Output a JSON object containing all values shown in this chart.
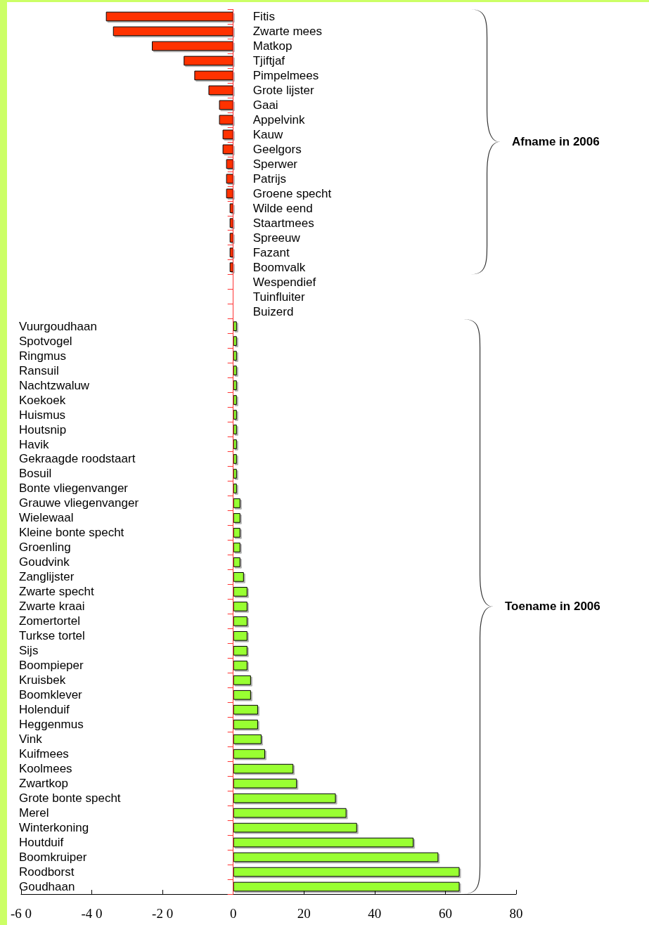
{
  "chart_data": {
    "type": "bar",
    "orientation": "horizontal",
    "categories": [
      "Fitis",
      "Zwarte mees",
      "Matkop",
      "Tjiftjaf",
      "Pimpelmees",
      "Grote lijster",
      "Gaai",
      "Appelvink",
      "Kauw",
      "Geelgors",
      "Sperwer",
      "Patrijs",
      "Groene specht",
      "Wilde eend",
      "Staartmees",
      "Spreeuw",
      "Fazant",
      "Boomvalk",
      "Wespendief",
      "Tuinfluiter",
      "Buizerd",
      "Vuurgoudhaan",
      "Spotvogel",
      "Ringmus",
      "Ransuil",
      "Nachtzwaluw",
      "Koekoek",
      "Huismus",
      "Houtsnip",
      "Havik",
      "Gekraagde roodstaart",
      "Bosuil",
      "Bonte vliegenvanger",
      "Grauwe vliegenvanger",
      "Wielewaal",
      "Kleine bonte specht",
      "Groenling",
      "Goudvink",
      "Zanglijster",
      "Zwarte specht",
      "Zwarte kraai",
      "Zomertortel",
      "Turkse tortel",
      "Sijs",
      "Boompieper",
      "Kruisbek",
      "Boomklever",
      "Holenduif",
      "Heggenmus",
      "Vink",
      "Kuifmees",
      "Koolmees",
      "Zwartkop",
      "Grote bonte specht",
      "Merel",
      "Winterkoning",
      "Houtduif",
      "Boomkruiper",
      "Roodborst",
      "Goudhaan"
    ],
    "values": [
      -36,
      -34,
      -23,
      -14,
      -11,
      -7,
      -4,
      -4,
      -3,
      -3,
      -2,
      -2,
      -2,
      -1,
      -1,
      -1,
      -1,
      -1,
      0,
      0,
      0,
      1,
      1,
      1,
      1,
      1,
      1,
      1,
      1,
      1,
      1,
      1,
      1,
      2,
      2,
      2,
      2,
      2,
      3,
      4,
      4,
      4,
      4,
      4,
      4,
      5,
      5,
      7,
      7,
      8,
      9,
      17,
      18,
      29,
      32,
      35,
      51,
      58,
      64,
      64
    ],
    "colors": [
      "#ff3300",
      "#ff3300",
      "#ff3300",
      "#ff3300",
      "#ff3300",
      "#ff3300",
      "#ff3300",
      "#ff3300",
      "#ff3300",
      "#ff3300",
      "#ff3300",
      "#ff3300",
      "#ff3300",
      "#ff3300",
      "#ff3300",
      "#ff3300",
      "#ff3300",
      "#ff3300",
      "#ff3300",
      "#ff3300",
      "#ff3300",
      "#99ff33",
      "#99ff33",
      "#99ff33",
      "#99ff33",
      "#99ff33",
      "#99ff33",
      "#99ff33",
      "#99ff33",
      "#99ff33",
      "#99ff33",
      "#99ff33",
      "#99ff33",
      "#99ff33",
      "#99ff33",
      "#99ff33",
      "#99ff33",
      "#99ff33",
      "#99ff33",
      "#99ff33",
      "#99ff33",
      "#99ff33",
      "#99ff33",
      "#99ff33",
      "#99ff33",
      "#99ff33",
      "#99ff33",
      "#99ff33",
      "#99ff33",
      "#99ff33",
      "#99ff33",
      "#99ff33",
      "#99ff33",
      "#99ff33",
      "#99ff33",
      "#99ff33",
      "#99ff33",
      "#99ff33",
      "#99ff33",
      "#99ff33"
    ],
    "xlim": [
      -60,
      80
    ],
    "xticks": [
      {
        "value": -60,
        "label": "-6 0"
      },
      {
        "value": -40,
        "label": "-4 0"
      },
      {
        "value": -20,
        "label": "-2 0"
      },
      0,
      20,
      40,
      60,
      80
    ],
    "grid": false,
    "ref_lines": [
      {
        "axis": "x",
        "value": 0,
        "color": "#ff3333"
      }
    ],
    "annotations": [
      "Afname in 2006",
      "Toename in 2006"
    ]
  }
}
